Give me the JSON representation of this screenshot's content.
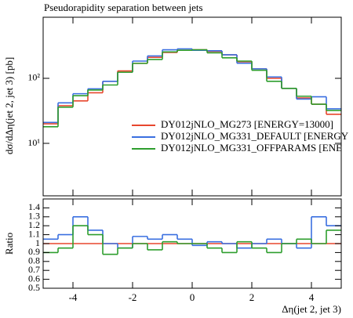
{
  "chart_data": [
    {
      "type": "histogram",
      "title": "Pseudorapidity separation between jets",
      "ylabel": "dσ/dΔη(jet 2, jet 3) [pb]",
      "log": true,
      "bins": [
        -5,
        -4.5,
        -4,
        -3.5,
        -3,
        -2.5,
        -2,
        -1.5,
        -1,
        -0.5,
        0,
        0.5,
        1,
        1.5,
        2,
        2.5,
        3,
        3.5,
        4,
        4.5,
        5
      ],
      "xlim": [
        -5,
        5
      ],
      "ylim": [
        1.56,
        870
      ],
      "yticks": [
        {
          "value": 10,
          "label": "10¹"
        },
        {
          "value": 100,
          "label": "10²"
        }
      ],
      "legend": "right",
      "series": [
        {
          "name": "DY012jNLO_MG273 [ENERGY=13000]",
          "color": "#e8472e",
          "values": [
            20,
            38,
            45,
            60,
            90,
            130,
            170,
            210,
            250,
            270,
            275,
            260,
            230,
            180,
            140,
            100,
            70,
            50,
            40,
            28
          ]
        },
        {
          "name": "DY012jNLO_MG331_DEFAULT [ENERGY",
          "color": "#3a6fe0",
          "values": [
            21,
            42,
            58,
            69,
            90,
            124,
            184,
            221,
            275,
            284,
            270,
            265,
            230,
            171,
            140,
            105,
            70,
            48,
            52,
            34
          ]
        },
        {
          "name": "DY012jNLO_MG331_OFFPARAMS [ENE",
          "color": "#2e9e2e",
          "values": [
            18,
            36,
            54,
            66,
            79,
            124,
            170,
            195,
            255,
            270,
            275,
            247,
            207,
            184,
            133,
            90,
            70,
            53,
            40,
            32
          ]
        }
      ]
    },
    {
      "type": "histogram",
      "ylabel": "Ratio",
      "xlabel": "Δη(jet 2, jet 3)",
      "bins": [
        -5,
        -4.5,
        -4,
        -3.5,
        -3,
        -2.5,
        -2,
        -1.5,
        -1,
        -0.5,
        0,
        0.5,
        1,
        1.5,
        2,
        2.5,
        3,
        3.5,
        4,
        4.5,
        5
      ],
      "xlim": [
        -5,
        5
      ],
      "ylim": [
        0.5,
        1.5
      ],
      "xticks": [
        -4,
        -2,
        0,
        2,
        4
      ],
      "yticks": [
        1.4,
        1.3,
        1.2,
        1.1,
        1,
        0.9,
        0.8,
        0.7,
        0.6,
        0.5
      ],
      "series": [
        {
          "color": "#e8472e",
          "values": [
            1,
            1,
            1,
            1,
            1,
            1,
            1,
            1,
            1,
            1,
            1,
            1,
            1,
            1,
            1,
            1,
            1,
            1,
            1,
            1
          ]
        },
        {
          "color": "#3a6fe0",
          "values": [
            1.05,
            1.1,
            1.3,
            1.15,
            1.0,
            0.95,
            1.08,
            1.05,
            1.1,
            1.05,
            0.98,
            1.02,
            1.0,
            0.95,
            1.0,
            1.05,
            1.0,
            0.95,
            1.3,
            1.2
          ]
        },
        {
          "color": "#2e9e2e",
          "values": [
            0.9,
            0.95,
            1.2,
            1.1,
            0.88,
            0.95,
            1.0,
            0.93,
            1.02,
            1.0,
            1.0,
            0.95,
            0.9,
            1.02,
            0.95,
            0.9,
            1.0,
            1.05,
            1.0,
            1.15
          ]
        }
      ]
    }
  ]
}
